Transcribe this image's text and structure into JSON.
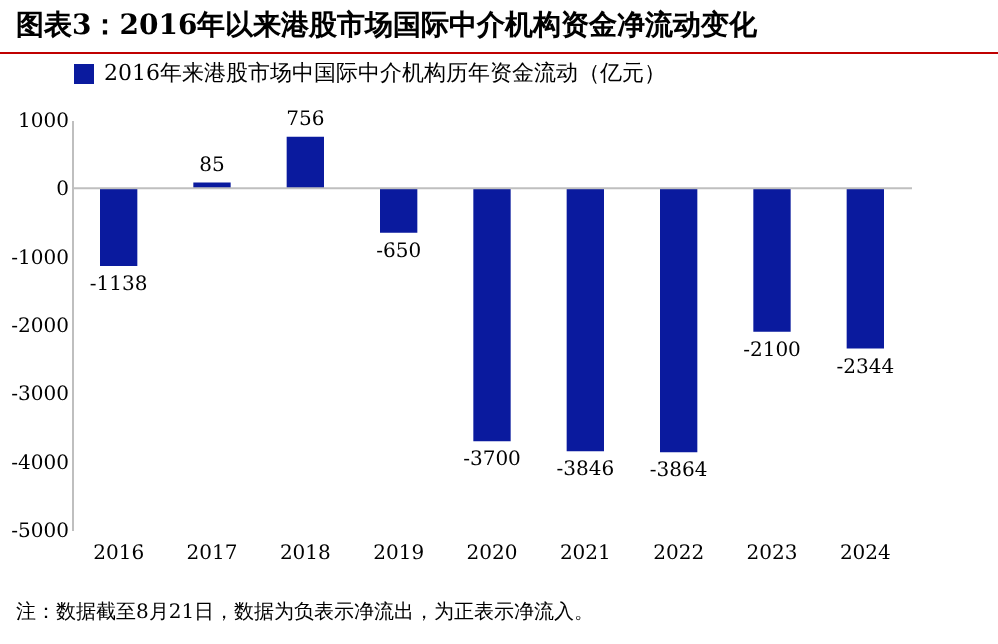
{
  "chart_data": {
    "type": "bar",
    "title": "图表3：2016年以来港股市场国际中介机构资金净流动变化",
    "categories": [
      "2016",
      "2017",
      "2018",
      "2019",
      "2020",
      "2021",
      "2022",
      "2023",
      "2024"
    ],
    "series": [
      {
        "name": "2016年来港股市场中国际中介机构历年资金流动（亿元）",
        "color": "#0a1a9e",
        "values": [
          -1138,
          85,
          756,
          -650,
          -3700,
          -3846,
          -3864,
          -2100,
          -2344
        ]
      }
    ],
    "ylim": [
      -5000,
      1000
    ],
    "yticks": [
      -5000,
      -4000,
      -3000,
      -2000,
      -1000,
      0,
      1000
    ],
    "ref_lines": [
      {
        "axis": "y",
        "value": 0,
        "color": "#bfbfbf"
      }
    ],
    "data_labels": true,
    "legend": "top",
    "grid": false,
    "annotations": [
      "注：数据截至8月21日，数据为负表示净流出，为正表示净流入。"
    ]
  }
}
